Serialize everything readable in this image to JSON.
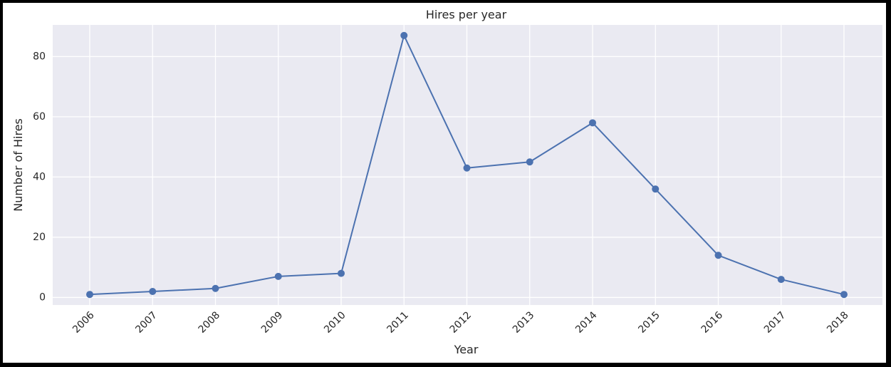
{
  "chart_data": {
    "type": "line",
    "title": "Hires per year",
    "xlabel": "Year",
    "ylabel": "Number of Hires",
    "x": [
      "2006",
      "2007",
      "2008",
      "2009",
      "2010",
      "2011",
      "2012",
      "2013",
      "2014",
      "2015",
      "2016",
      "2017",
      "2018"
    ],
    "series": [
      {
        "values": [
          1,
          2,
          3,
          7,
          8,
          87,
          43,
          45,
          58,
          36,
          14,
          6,
          1
        ]
      }
    ],
    "yticks": [
      0,
      20,
      40,
      60,
      80
    ],
    "ylim": [
      -2.5,
      90.5
    ],
    "grid": true,
    "legend": "none",
    "colors": {
      "line": "#4c72b0",
      "plot_background": "#eaeaf2",
      "grid": "#ffffff",
      "frame": "#000000"
    }
  }
}
